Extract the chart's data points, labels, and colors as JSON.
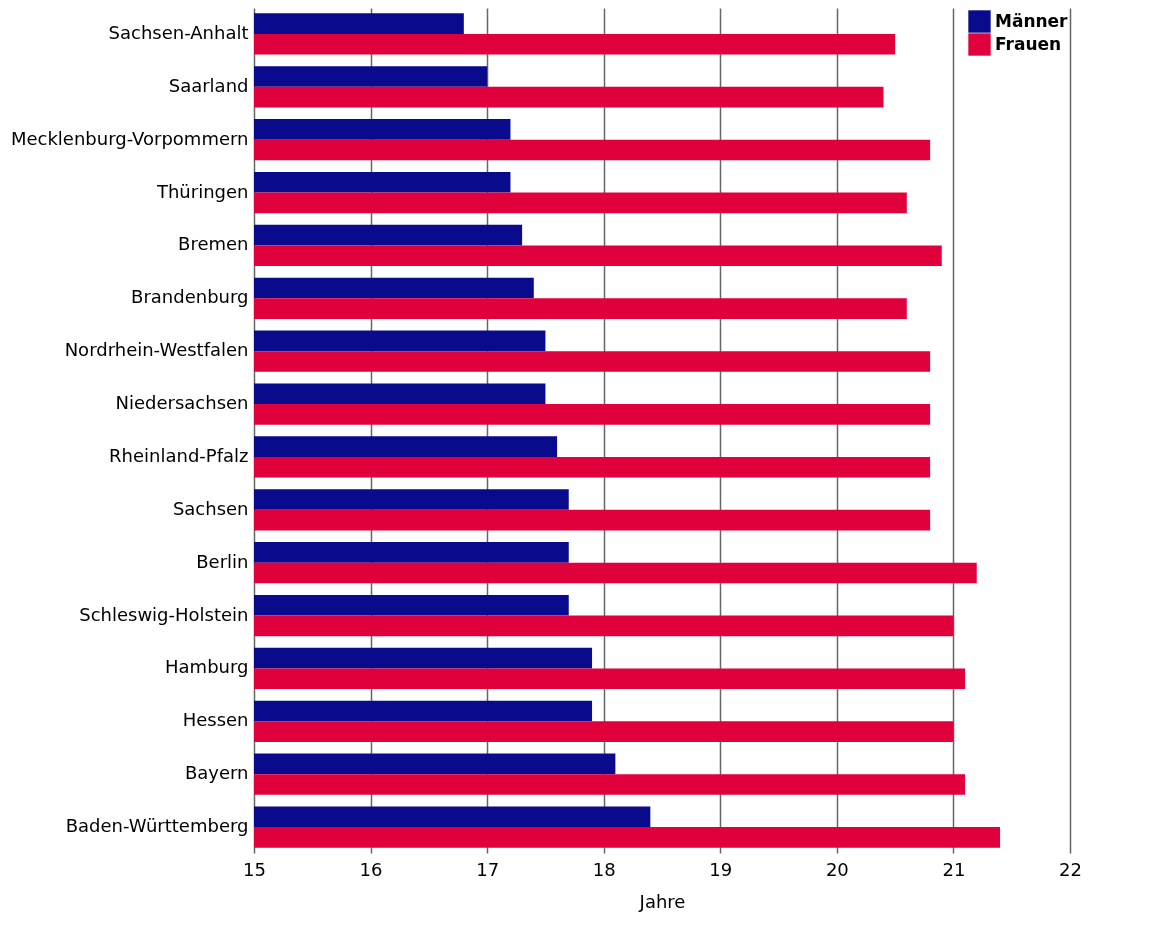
{
  "chart_data": {
    "type": "bar",
    "orientation": "horizontal",
    "xlabel": "Jahre",
    "categories": [
      "Sachsen-Anhalt",
      "Saarland",
      "Mecklenburg-Vorpommern",
      "Thüringen",
      "Bremen",
      "Brandenburg",
      "Nordrhein-Westfalen",
      "Niedersachsen",
      "Rheinland-Pfalz",
      "Sachsen",
      "Berlin",
      "Schleswig-Holstein",
      "Hamburg",
      "Hessen",
      "Bayern",
      "Baden-Württemberg"
    ],
    "series": [
      {
        "name": "Männer",
        "color": "#0a0a8c",
        "values": [
          16.8,
          17.0,
          17.2,
          17.2,
          17.3,
          17.4,
          17.5,
          17.5,
          17.6,
          17.7,
          17.7,
          17.7,
          17.9,
          17.9,
          18.1,
          18.4
        ]
      },
      {
        "name": "Frauen",
        "color": "#e0003c",
        "values": [
          20.5,
          20.4,
          20.8,
          20.6,
          20.9,
          20.6,
          20.8,
          20.8,
          20.8,
          20.8,
          21.2,
          21.0,
          21.1,
          21.0,
          21.1,
          21.4
        ]
      }
    ],
    "xlim": [
      15,
      22
    ],
    "xticks": [
      15,
      16,
      17,
      18,
      19,
      20,
      21,
      22
    ],
    "grid": "x",
    "legend": "top right"
  }
}
